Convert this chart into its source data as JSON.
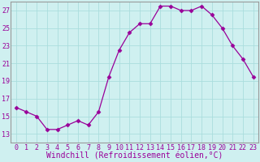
{
  "x": [
    0,
    1,
    2,
    3,
    4,
    5,
    6,
    7,
    8,
    9,
    10,
    11,
    12,
    13,
    14,
    15,
    16,
    17,
    18,
    19,
    20,
    21,
    22,
    23
  ],
  "y": [
    16.0,
    15.5,
    15.0,
    13.5,
    13.5,
    14.0,
    14.5,
    14.0,
    15.5,
    19.5,
    22.5,
    24.5,
    25.5,
    25.5,
    27.5,
    27.5,
    27.0,
    27.0,
    27.5,
    26.5,
    25.0,
    23.0,
    21.5,
    19.5
  ],
  "line_color": "#990099",
  "marker": "D",
  "marker_size": 2.5,
  "bg_color": "#cff0f0",
  "grid_color": "#aadddd",
  "xlabel": "Windchill (Refroidissement éolien,°C)",
  "xlabel_fontsize": 7,
  "ylim": [
    12,
    28
  ],
  "yticks": [
    13,
    15,
    17,
    19,
    21,
    23,
    25,
    27
  ],
  "xticks": [
    0,
    1,
    2,
    3,
    4,
    5,
    6,
    7,
    8,
    9,
    10,
    11,
    12,
    13,
    14,
    15,
    16,
    17,
    18,
    19,
    20,
    21,
    22,
    23
  ],
  "tick_color": "#990099",
  "tick_fontsize": 6,
  "spine_color": "#999999"
}
